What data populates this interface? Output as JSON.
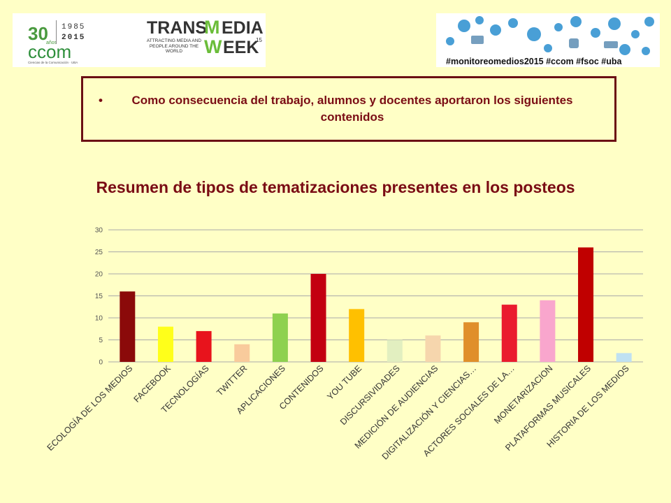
{
  "header": {
    "logo_ccom": {
      "years_top": "1985",
      "years_bottom": "2015",
      "anniversary_number": "30",
      "anniversary_label": "años",
      "name": "ccom",
      "subtitle": "Ciencias de la Comunicación · UBA"
    },
    "logo_transmedia": {
      "line1": "TRANS",
      "line1_rest": "EDIA",
      "line2_rest": "EEK",
      "superscript": "15",
      "tagline": "ATTRACTING MEDIA AND PEOPLE AROUND THE WORLD"
    },
    "hashtags_banner": "#monitoreomedios2015 #ccom #fsoc #uba"
  },
  "callout": {
    "text": "Como consecuencia del trabajo, alumnos y docentes aportaron los siguientes contenidos"
  },
  "chart_title": "Resumen de tipos de tematizaciones presentes en los posteos",
  "chart_data": {
    "type": "bar",
    "title": "Resumen de tipos de tematizaciones presentes en los posteos",
    "xlabel": "",
    "ylabel": "",
    "ylim": [
      0,
      30
    ],
    "yticks": [
      0,
      5,
      10,
      15,
      20,
      25,
      30
    ],
    "grid": true,
    "categories": [
      "ECOLOGÍA DE LOS MEDIOS",
      "FACEBOOK",
      "TECNOLOGÍAS",
      "TWITTER",
      "APLICACIONES",
      "CONTENIDOS",
      "YOU TUBE",
      "DISCURSIVIDADES",
      "MEDICIÓN DE AUDIENCIAS",
      "DIGITALIZACIÓN Y CIENCIAS…",
      "ACTORES SOCIALES DE LA…",
      "MONETARIZACION",
      "PLATAFORMAS MUSICALES",
      "HISTORIA DE LOS MEDIOS"
    ],
    "values": [
      16,
      8,
      7,
      4,
      11,
      20,
      12,
      5,
      6,
      9,
      13,
      14,
      26,
      2
    ],
    "colors": [
      "#8b0a0a",
      "#ffff1a",
      "#e8131c",
      "#f9cb9c",
      "#8ed14f",
      "#c30010",
      "#ffc000",
      "#e2efc0",
      "#f6d6ad",
      "#e08f2a",
      "#ea1b2e",
      "#f9a6cd",
      "#c00000",
      "#bfe1f2"
    ]
  }
}
